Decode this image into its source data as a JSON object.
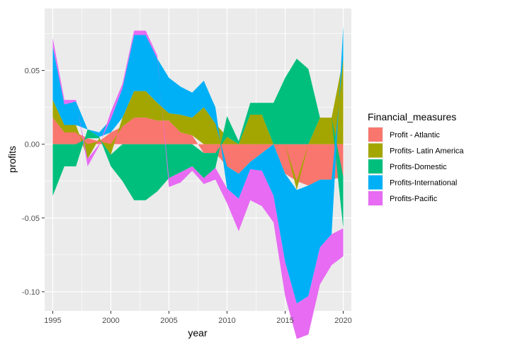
{
  "chart_data": {
    "type": "area",
    "xlabel": "year",
    "ylabel": "profits",
    "xlim": [
      1994.3,
      2020.7
    ],
    "ylim": [
      -0.113,
      0.092
    ],
    "x_ticks": [
      1995,
      2000,
      2005,
      2010,
      2015,
      2020
    ],
    "x_tick_labels": [
      "1995",
      "2000",
      "2005",
      "2010",
      "2015",
      "2020"
    ],
    "y_ticks": [
      0.05,
      0.0,
      -0.05,
      -0.1
    ],
    "y_tick_labels": [
      "0.05",
      "0.00",
      "-0.05",
      "-0.10"
    ],
    "grid": true,
    "legend": {
      "title": "Financial_measures",
      "position": "right"
    },
    "x": [
      1995,
      1996,
      1997,
      1998,
      1999,
      2000,
      2001,
      2002,
      2003,
      2004,
      2005,
      2006,
      2007,
      2008,
      2009,
      2010,
      2011,
      2012,
      2013,
      2014,
      2015,
      2016,
      2017,
      2018,
      2019,
      2020
    ],
    "series": [
      {
        "name": "Profit - Atlantic",
        "color": "#F8766D",
        "values": [
          0.018,
          0.008,
          0.008,
          0.004,
          0.002,
          0.008,
          0.012,
          0.018,
          0.018,
          0.016,
          0.016,
          0.008,
          0.006,
          -0.006,
          -0.006,
          -0.015,
          -0.02,
          -0.012,
          -0.006,
          0.0,
          -0.02,
          -0.025,
          -0.028,
          -0.024,
          -0.024,
          -0.022
        ]
      },
      {
        "name": "Profits- Latin America",
        "color": "#A3A500",
        "values": [
          0.012,
          0.005,
          0.005,
          -0.01,
          0.002,
          -0.007,
          0.006,
          0.018,
          0.018,
          0.012,
          0.005,
          0.012,
          0.012,
          0.025,
          0.014,
          0.005,
          0.0,
          0.02,
          0.02,
          0.0,
          0.0,
          -0.006,
          0.0,
          0.018,
          0.018,
          0.058
        ]
      },
      {
        "name": "Profits-Domestic",
        "color": "#00BF7D",
        "values": [
          -0.035,
          -0.015,
          -0.015,
          0.006,
          0.001,
          -0.008,
          -0.025,
          -0.038,
          -0.038,
          -0.032,
          -0.023,
          -0.019,
          -0.015,
          -0.017,
          -0.01,
          0.014,
          0.002,
          0.008,
          0.008,
          0.028,
          0.045,
          0.058,
          0.051,
          0.0,
          0.0,
          -0.035
        ]
      },
      {
        "name": "Profits-International",
        "color": "#00B0F6",
        "values": [
          0.036,
          0.014,
          0.016,
          0.0,
          0.003,
          0.009,
          0.02,
          0.038,
          0.038,
          0.03,
          0.024,
          0.019,
          0.017,
          0.018,
          0.011,
          -0.015,
          -0.017,
          -0.005,
          -0.012,
          -0.035,
          -0.06,
          -0.077,
          -0.075,
          -0.046,
          -0.037,
          0.022
        ]
      },
      {
        "name": "Profits-Pacific",
        "color": "#E76BF3",
        "values": [
          0.006,
          0.003,
          0.001,
          -0.005,
          -0.001,
          0.005,
          0.003,
          0.003,
          0.003,
          0.002,
          -0.006,
          -0.007,
          -0.003,
          -0.004,
          -0.008,
          -0.01,
          -0.022,
          -0.021,
          -0.024,
          -0.018,
          -0.023,
          -0.024,
          -0.026,
          -0.025,
          -0.021,
          -0.019
        ]
      }
    ]
  }
}
